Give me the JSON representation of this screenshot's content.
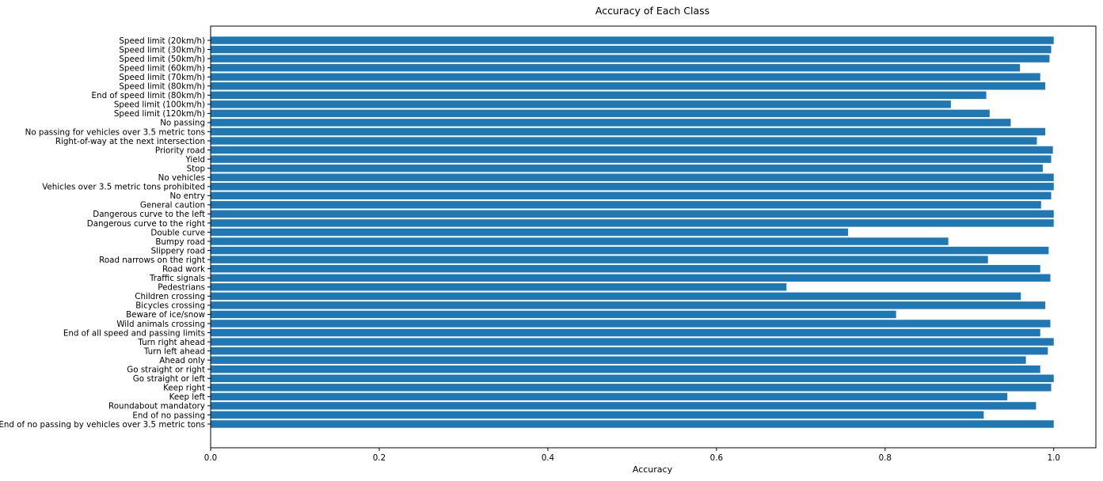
{
  "chart_data": {
    "type": "bar",
    "orientation": "horizontal",
    "title": "Accuracy of Each Class",
    "xlabel": "Accuracy",
    "ylabel": "",
    "xlim": [
      0,
      1.05
    ],
    "x_ticks": [
      "0.0",
      "0.2",
      "0.4",
      "0.6",
      "0.8",
      "1.0"
    ],
    "x_tick_values": [
      0.0,
      0.2,
      0.4,
      0.6,
      0.8,
      1.0
    ],
    "bar_color": "#1f77b4",
    "grid": false,
    "legend": "none",
    "categories": [
      "Speed limit (20km/h)",
      "Speed limit (30km/h)",
      "Speed limit (50km/h)",
      "Speed limit (60km/h)",
      "Speed limit (70km/h)",
      "Speed limit (80km/h)",
      "End of speed limit (80km/h)",
      "Speed limit (100km/h)",
      "Speed limit (120km/h)",
      "No passing",
      "No passing for vehicles over 3.5 metric tons",
      "Right-of-way at the next intersection",
      "Priority road",
      "Yield",
      "Stop",
      "No vehicles",
      "Vehicles over 3.5 metric tons prohibited",
      "No entry",
      "General caution",
      "Dangerous curve to the left",
      "Dangerous curve to the right",
      "Double curve",
      "Bumpy road",
      "Slippery road",
      "Road narrows on the right",
      "Road work",
      "Traffic signals",
      "Pedestrians",
      "Children crossing",
      "Bicycles crossing",
      "Beware of ice/snow",
      "Wild animals crossing",
      "End of all speed and passing limits",
      "Turn right ahead",
      "Turn left ahead",
      "Ahead only",
      "Go straight or right",
      "Go straight or left",
      "Keep right",
      "Keep left",
      "Roundabout mandatory",
      "End of no passing",
      "End of no passing by vehicles over 3.5 metric tons"
    ],
    "values": [
      1.0,
      0.997,
      0.995,
      0.96,
      0.984,
      0.99,
      0.92,
      0.878,
      0.924,
      0.949,
      0.99,
      0.98,
      0.999,
      0.997,
      0.987,
      1.0,
      1.0,
      0.997,
      0.985,
      1.0,
      1.0,
      0.756,
      0.875,
      0.994,
      0.922,
      0.984,
      0.996,
      0.683,
      0.961,
      0.99,
      0.813,
      0.996,
      0.984,
      1.0,
      0.993,
      0.967,
      0.984,
      1.0,
      0.997,
      0.945,
      0.979,
      0.917,
      1.0
    ]
  }
}
